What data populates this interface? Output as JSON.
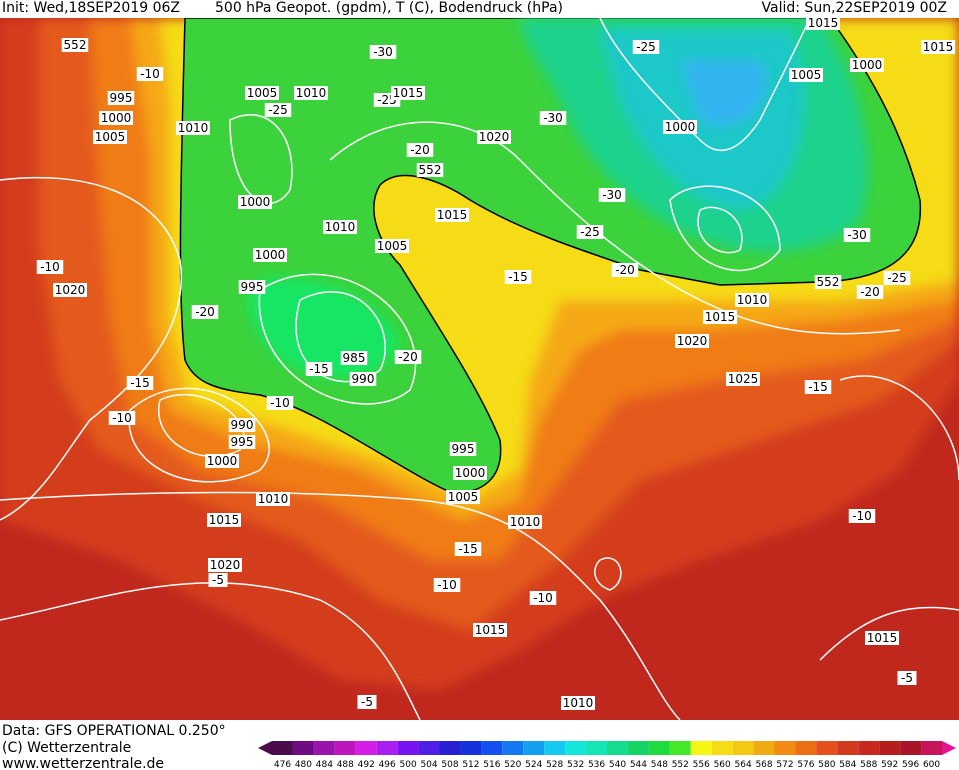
{
  "header": {
    "init": "Init: Wed,18SEP2019 06Z",
    "title": "500 hPa Geopot. (gpdm), T (C), Bodendruck (hPa)",
    "valid": "Valid: Sun,22SEP2019 00Z"
  },
  "footer": {
    "lines": [
      "Data: GFS OPERATIONAL 0.250°",
      "(C) Wetterzentrale",
      "www.wetterzentrale.de"
    ]
  },
  "colorbar": {
    "labels": [
      "476",
      "480",
      "484",
      "488",
      "492",
      "496",
      "500",
      "504",
      "508",
      "512",
      "516",
      "520",
      "524",
      "528",
      "532",
      "536",
      "540",
      "544",
      "548",
      "552",
      "556",
      "560",
      "564",
      "568",
      "572",
      "576",
      "580",
      "584",
      "588",
      "592",
      "596",
      "600"
    ]
  },
  "map_labels": [
    "552",
    "-10",
    "995",
    "1000",
    "1005",
    "1010",
    "1005",
    "1010",
    "-25",
    "-30",
    "-25",
    "1015",
    "1020",
    "-30",
    "-25",
    "1000",
    "1015",
    "1005",
    "1000",
    "1015",
    "1000",
    "-20",
    "552",
    "1010",
    "1015",
    "1005",
    "-30",
    "1000",
    "-25",
    "-30",
    "-20",
    "-10",
    "1020",
    "995",
    "-20",
    "-15",
    "-25",
    "552",
    "-20",
    "1010",
    "1015",
    "1020",
    "1025",
    "-15",
    "985",
    "-20",
    "-15",
    "990",
    "-15",
    "-10",
    "-10",
    "990",
    "995",
    "1000",
    "995",
    "1000",
    "1005",
    "1010",
    "1015",
    "1010",
    "-15",
    "-10",
    "-10",
    "1020",
    "-5",
    "1015",
    "-10",
    "1015",
    "-5",
    "1010",
    "-5"
  ]
}
